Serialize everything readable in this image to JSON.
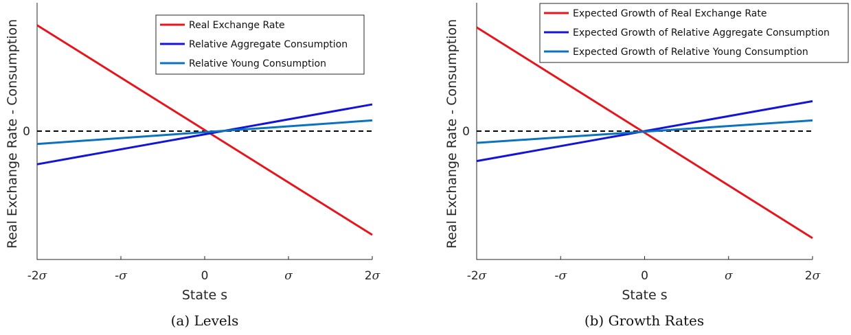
{
  "chart_data": [
    {
      "type": "line",
      "caption": "(a) Levels",
      "xlabel": "State s",
      "ylabel": "Real Exchange Rate - Consumption",
      "x_ticks": [
        {
          "value": -2,
          "text": "-2",
          "sigma": true
        },
        {
          "value": -1,
          "text": "-",
          "sigma": true
        },
        {
          "value": 0,
          "text": "0",
          "sigma": false
        },
        {
          "value": 1,
          "text": "",
          "sigma": true
        },
        {
          "value": 2,
          "text": "2",
          "sigma": true
        }
      ],
      "y_ticks": [
        {
          "value": 0,
          "text": "0"
        }
      ],
      "xlim": [
        -2,
        2
      ],
      "ylim": [
        -1.2,
        1.2
      ],
      "legend_position": "top-right",
      "zero_line": {
        "y": 0,
        "style": "dashed",
        "color": "#000000"
      },
      "series": [
        {
          "name": "Real Exchange Rate",
          "color": "#E8141C",
          "x": [
            -2,
            2
          ],
          "y": [
            0.99,
            -0.97
          ]
        },
        {
          "name": "Relative Aggregate Consumption",
          "color": "#1414D8",
          "x": [
            -2,
            2
          ],
          "y": [
            -0.31,
            0.25
          ]
        },
        {
          "name": "Relative Young Consumption",
          "color": "#0B72BD",
          "x": [
            -2,
            2
          ],
          "y": [
            -0.12,
            0.1
          ]
        }
      ]
    },
    {
      "type": "line",
      "caption": "(b) Growth Rates",
      "xlabel": "State s",
      "ylabel": "Real Exchange Rate - Consumption",
      "x_ticks": [
        {
          "value": -2,
          "text": "-2",
          "sigma": true
        },
        {
          "value": -1,
          "text": "-",
          "sigma": true
        },
        {
          "value": 0,
          "text": "0",
          "sigma": false
        },
        {
          "value": 1,
          "text": "",
          "sigma": true
        },
        {
          "value": 2,
          "text": "2",
          "sigma": true
        }
      ],
      "y_ticks": [
        {
          "value": 0,
          "text": "0"
        }
      ],
      "xlim": [
        -2,
        2
      ],
      "ylim": [
        -1.2,
        1.2
      ],
      "legend_position": "top-right",
      "zero_line": {
        "y": 0,
        "style": "dashed",
        "color": "#000000"
      },
      "series": [
        {
          "name": "Expected Growth of Real Exchange Rate",
          "color": "#E8141C",
          "x": [
            -2,
            2
          ],
          "y": [
            0.97,
            -1.0
          ]
        },
        {
          "name": "Expected Growth of Relative Aggregate Consumption",
          "color": "#1414D8",
          "x": [
            -2,
            2
          ],
          "y": [
            -0.28,
            0.28
          ]
        },
        {
          "name": "Expected Growth of Relative Young Consumption",
          "color": "#0B72BD",
          "x": [
            -2,
            2
          ],
          "y": [
            -0.11,
            0.1
          ]
        }
      ]
    }
  ]
}
